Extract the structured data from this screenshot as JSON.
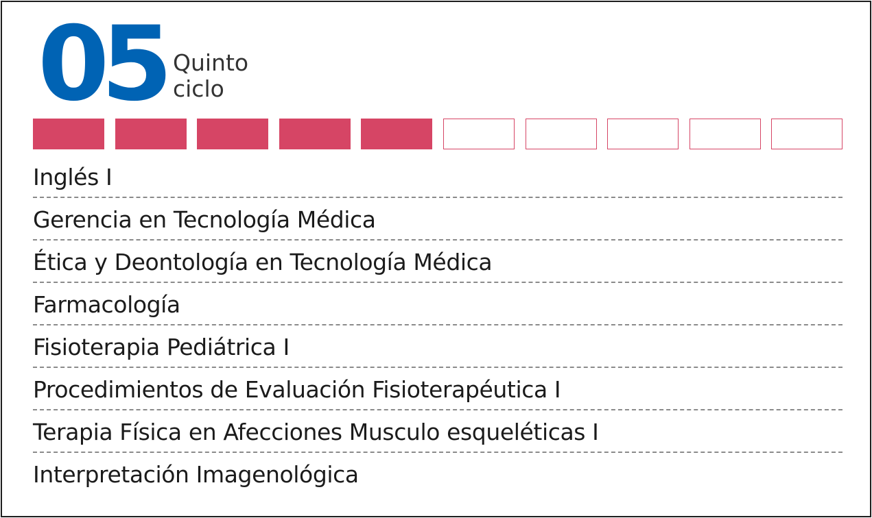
{
  "cycle": {
    "number": "05",
    "label_line1": "Quinto",
    "label_line2": "ciclo"
  },
  "progress": {
    "total_cycles": 10,
    "completed_cycles": 5,
    "filled_color": "#d64565",
    "empty_border_color": "#d64565",
    "empty_fill_color": "#ffffff"
  },
  "courses": [
    "Inglés I",
    "Gerencia en Tecnología Médica",
    "Ética y Deontología en Tecnología Médica",
    "Farmacología",
    "Fisioterapia Pediátrica I",
    "Procedimientos de Evaluación Fisioterapéutica I",
    "Terapia Física en Afecciones Musculo esqueléticas I",
    "Interpretación Imagenológica"
  ]
}
